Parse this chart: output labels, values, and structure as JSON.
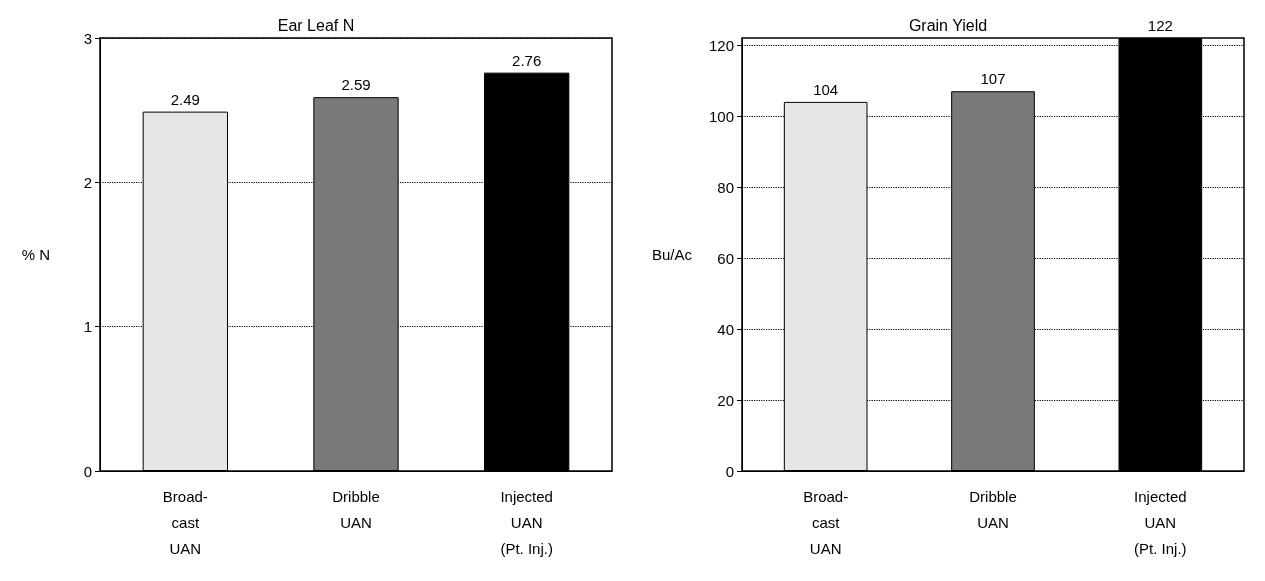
{
  "chart_data": [
    {
      "type": "bar",
      "title": "Ear Leaf N",
      "ylabel": "% N",
      "categories": [
        "Broad-\ncast\nUAN",
        "Dribble\nUAN",
        "Injected\nUAN\n(Pt. Inj.)"
      ],
      "values": [
        2.49,
        2.59,
        2.76
      ],
      "colors": [
        "#e6e6e6",
        "#7a7a7a",
        "#000000"
      ],
      "ylim": [
        0,
        3
      ],
      "yticks": [
        0,
        1,
        2,
        3
      ],
      "grid": "y",
      "data_labels": true
    },
    {
      "type": "bar",
      "title": "Grain Yield",
      "ylabel": "Bu/Ac",
      "categories": [
        "Broad-\ncast\nUAN",
        "Dribble\nUAN",
        "Injected\nUAN\n(Pt. Inj.)"
      ],
      "values": [
        104,
        107,
        122
      ],
      "colors": [
        "#e6e6e6",
        "#7a7a7a",
        "#000000"
      ],
      "ylim": [
        0,
        122
      ],
      "yticks": [
        0,
        20,
        40,
        60,
        80,
        100,
        120
      ],
      "grid": "y",
      "data_labels": true
    }
  ]
}
